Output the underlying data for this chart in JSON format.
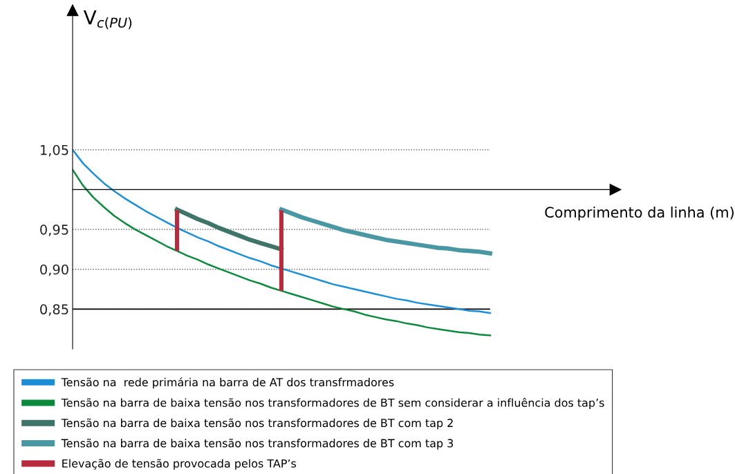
{
  "chart_data": {
    "type": "line",
    "ylabel": "V$_{c(PU)}$",
    "xlabel": "Comprimento da linha (m)",
    "categories": [
      null,
      null,
      null,
      null,
      null,
      null,
      null,
      null,
      null,
      null,
      null,
      null,
      null,
      null,
      null,
      null,
      null,
      null,
      null,
      null,
      null,
      null,
      null,
      null,
      null,
      null,
      null,
      null,
      null,
      null,
      null,
      null,
      null,
      null,
      null,
      null,
      null,
      null,
      null,
      null,
      null
    ],
    "series": [
      {
        "name": "Tensão na  rede primária na barra de AT dos transfrmadores",
        "color": "#1a8fd8",
        "values": [
          1.05,
          1.033,
          1.02,
          1.008,
          0.998,
          0.989,
          0.981,
          0.973,
          0.966,
          0.959,
          0.952,
          0.946,
          0.94,
          0.935,
          0.929,
          0.924,
          0.919,
          0.914,
          0.91,
          0.905,
          0.901,
          0.897,
          0.893,
          0.889,
          0.885,
          0.881,
          0.878,
          0.875,
          0.872,
          0.869,
          0.866,
          0.863,
          0.861,
          0.858,
          0.856,
          0.854,
          0.852,
          0.85,
          0.848,
          0.847,
          0.845
        ]
      },
      {
        "name": "Tensão na barra de baixa tensão nos transformadores de BT sem considerar a influência dos tap’s",
        "color": "#0a8a3c",
        "values": [
          1.025,
          1.005,
          0.99,
          0.978,
          0.967,
          0.958,
          0.95,
          0.943,
          0.936,
          0.929,
          0.923,
          0.917,
          0.912,
          0.906,
          0.901,
          0.896,
          0.891,
          0.886,
          0.882,
          0.877,
          0.873,
          0.869,
          0.865,
          0.861,
          0.857,
          0.853,
          0.85,
          0.847,
          0.843,
          0.84,
          0.837,
          0.835,
          0.832,
          0.83,
          0.827,
          0.825,
          0.823,
          0.821,
          0.82,
          0.818,
          0.817
        ]
      },
      {
        "name": "Tensão na barra de baixa tensão nos transformadores de BT com tap 2",
        "color": "#3f7468",
        "values": [
          null,
          null,
          null,
          null,
          null,
          null,
          null,
          null,
          null,
          null,
          0.975,
          0.969,
          0.963,
          0.958,
          0.952,
          0.947,
          0.942,
          0.937,
          0.933,
          0.929,
          0.925,
          null,
          null,
          null,
          null,
          null,
          null,
          null,
          null,
          null,
          null,
          null,
          null,
          null,
          null,
          null,
          null,
          null,
          null,
          null,
          null
        ]
      },
      {
        "name": "Tensão na barra de baixa tensão nos transformadores de BT com tap 3",
        "color": "#4a97a4",
        "values": [
          null,
          null,
          null,
          null,
          null,
          null,
          null,
          null,
          null,
          null,
          null,
          null,
          null,
          null,
          null,
          null,
          null,
          null,
          null,
          null,
          0.975,
          0.97,
          0.965,
          0.961,
          0.957,
          0.953,
          0.949,
          0.946,
          0.943,
          0.94,
          0.937,
          0.935,
          0.933,
          0.931,
          0.929,
          0.927,
          0.926,
          0.924,
          0.923,
          0.922,
          0.92
        ]
      },
      {
        "name": "Elevação de tensão provocada pelos TAP’s",
        "type": "bar",
        "color": "#b82a3c",
        "values": [
          null,
          null,
          null,
          null,
          null,
          null,
          null,
          null,
          null,
          null,
          0.051,
          null,
          null,
          null,
          null,
          null,
          null,
          null,
          null,
          null,
          0.101,
          null,
          null,
          null,
          null,
          null,
          null,
          null,
          null,
          null,
          null,
          null,
          null,
          null,
          null,
          null,
          null,
          null,
          null,
          null,
          null
        ],
        "base": [
          null,
          null,
          null,
          null,
          null,
          null,
          null,
          null,
          null,
          null,
          0.923,
          null,
          null,
          null,
          null,
          null,
          null,
          null,
          null,
          null,
          0.873,
          null,
          null,
          null,
          null,
          null,
          null,
          null,
          null,
          null,
          null,
          null,
          null,
          null,
          null,
          null,
          null,
          null,
          null,
          null,
          null
        ]
      }
    ],
    "ylim": [
      0.8,
      1.225
    ],
    "yticks": [
      {
        "value": 0.85,
        "label": "0,85"
      },
      {
        "value": 0.9,
        "label": "0,90"
      },
      {
        "value": 0.95,
        "label": "0,95"
      },
      {
        "value": 1.05,
        "label": "1,05"
      }
    ],
    "ref_lines": [
      {
        "axis": "y",
        "value": 1.0,
        "color": "#000000",
        "line_style": "solid"
      },
      {
        "axis": "y",
        "value": 0.85,
        "color": "#000000",
        "line_style": "solid"
      }
    ],
    "grid": "y",
    "line_style": "solid",
    "legend": "bottom"
  }
}
